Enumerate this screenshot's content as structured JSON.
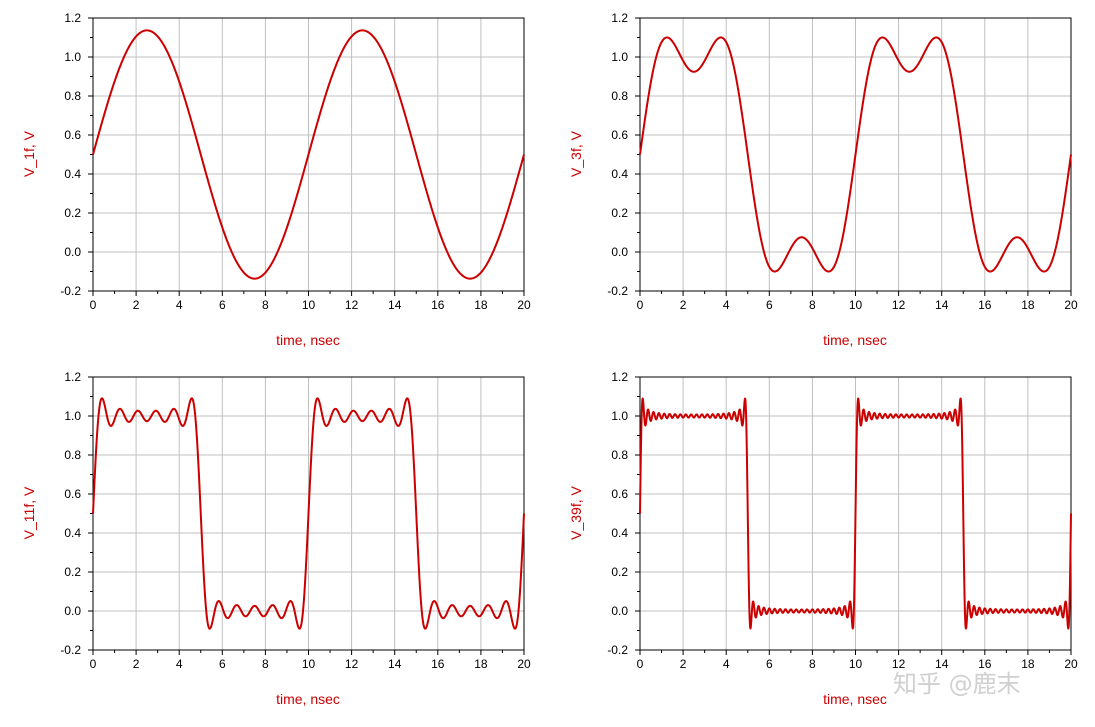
{
  "colors": {
    "series": "#cc0000",
    "label": "#cc0000",
    "grid": "#c0c0c0",
    "axis": "#000000"
  },
  "watermark": "知乎 @鹿末",
  "chart_data": [
    {
      "type": "line",
      "ylabel": "V_1f, V",
      "xlabel": "time, nsec",
      "xlim": [
        0,
        20
      ],
      "ylim": [
        -0.2,
        1.2
      ],
      "xticks": [
        "0",
        "2",
        "4",
        "6",
        "8",
        "10",
        "12",
        "14",
        "16",
        "18",
        "20"
      ],
      "yticks": [
        "-0.2",
        "0.0",
        "0.2",
        "0.4",
        "0.6",
        "0.8",
        "1.0",
        "1.2"
      ],
      "grid": true,
      "series": [
        {
          "harmonics": 1,
          "period_ns": 10,
          "offset": 0.5,
          "amplitude": 1.0,
          "points": 801
        }
      ]
    },
    {
      "type": "line",
      "ylabel": "V_3f, V",
      "xlabel": "time, nsec",
      "xlim": [
        0,
        20
      ],
      "ylim": [
        -0.2,
        1.2
      ],
      "xticks": [
        "0",
        "2",
        "4",
        "6",
        "8",
        "10",
        "12",
        "14",
        "16",
        "18",
        "20"
      ],
      "yticks": [
        "-0.2",
        "0.0",
        "0.2",
        "0.4",
        "0.6",
        "0.8",
        "1.0",
        "1.2"
      ],
      "grid": true,
      "series": [
        {
          "harmonics": 3,
          "period_ns": 10,
          "offset": 0.5,
          "amplitude": 1.0,
          "points": 1201
        }
      ]
    },
    {
      "type": "line",
      "ylabel": "V_11f, V",
      "xlabel": "time, nsec",
      "xlim": [
        0,
        20
      ],
      "ylim": [
        -0.2,
        1.2
      ],
      "xticks": [
        "0",
        "2",
        "4",
        "6",
        "8",
        "10",
        "12",
        "14",
        "16",
        "18",
        "20"
      ],
      "yticks": [
        "-0.2",
        "0.0",
        "0.2",
        "0.4",
        "0.6",
        "0.8",
        "1.0",
        "1.2"
      ],
      "grid": true,
      "series": [
        {
          "harmonics": 11,
          "period_ns": 10,
          "offset": 0.5,
          "amplitude": 1.0,
          "points": 2001
        }
      ]
    },
    {
      "type": "line",
      "ylabel": "V_39f, V",
      "xlabel": "time, nsec",
      "xlim": [
        0,
        20
      ],
      "ylim": [
        -0.2,
        1.2
      ],
      "xticks": [
        "0",
        "2",
        "4",
        "6",
        "8",
        "10",
        "12",
        "14",
        "16",
        "18",
        "20"
      ],
      "yticks": [
        "-0.2",
        "0.0",
        "0.2",
        "0.4",
        "0.6",
        "0.8",
        "1.0",
        "1.2"
      ],
      "grid": true,
      "series": [
        {
          "harmonics": 39,
          "period_ns": 10,
          "offset": 0.5,
          "amplitude": 1.0,
          "points": 4001
        }
      ]
    }
  ]
}
